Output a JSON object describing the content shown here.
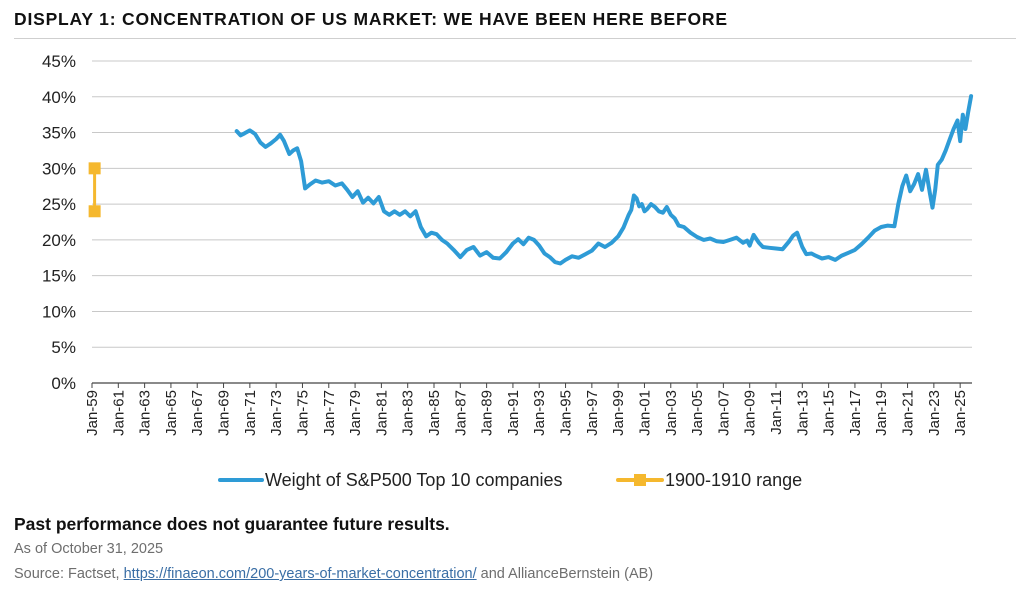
{
  "title": "DISPLAY 1: CONCENTRATION OF US MARKET: WE HAVE BEEN HERE BEFORE",
  "colors": {
    "series1": "#2e9bd6",
    "series2": "#f5b82e",
    "grid": "#c8c8c8",
    "axis": "#444444"
  },
  "footer": {
    "disclaimer": "Past performance does not guarantee future results.",
    "as_of": "As of October 31, 2025",
    "source_prefix": "Source: Factset, ",
    "source_link": "https://finaeon.com/200-years-of-market-concentration/",
    "source_suffix": " and AllianceBernstein (AB)"
  },
  "chart_data": {
    "type": "line",
    "title": "DISPLAY 1: CONCENTRATION OF US MARKET: WE HAVE BEEN HERE BEFORE",
    "xlabel": "",
    "ylabel": "",
    "x_range": [
      1959.0,
      2025.9
    ],
    "ylim": [
      0,
      45
    ],
    "y_ticks": [
      "0%",
      "5%",
      "10%",
      "15%",
      "20%",
      "25%",
      "30%",
      "35%",
      "40%",
      "45%"
    ],
    "y_tick_values": [
      0,
      5,
      10,
      15,
      20,
      25,
      30,
      35,
      40,
      45
    ],
    "x_ticks": [
      "Jan-59",
      "Jan-61",
      "Jan-63",
      "Jan-65",
      "Jan-67",
      "Jan-69",
      "Jan-71",
      "Jan-73",
      "Jan-75",
      "Jan-77",
      "Jan-79",
      "Jan-81",
      "Jan-83",
      "Jan-85",
      "Jan-87",
      "Jan-89",
      "Jan-91",
      "Jan-93",
      "Jan-95",
      "Jan-97",
      "Jan-99",
      "Jan-01",
      "Jan-03",
      "Jan-05",
      "Jan-07",
      "Jan-09",
      "Jan-11",
      "Jan-13",
      "Jan-15",
      "Jan-17",
      "Jan-19",
      "Jan-21",
      "Jan-23",
      "Jan-25"
    ],
    "x_tick_values": [
      1959,
      1961,
      1963,
      1965,
      1967,
      1969,
      1971,
      1973,
      1975,
      1977,
      1979,
      1981,
      1983,
      1985,
      1987,
      1989,
      1991,
      1993,
      1995,
      1997,
      1999,
      2001,
      2003,
      2005,
      2007,
      2009,
      2011,
      2013,
      2015,
      2017,
      2019,
      2021,
      2023,
      2025
    ],
    "grid": true,
    "legend_position": "bottom",
    "series": [
      {
        "name": "Weight of S&P500 Top 10 companies",
        "style": "line",
        "x": [
          1970.0,
          1970.3,
          1970.6,
          1971.0,
          1971.4,
          1971.8,
          1972.2,
          1972.6,
          1973.0,
          1973.3,
          1973.6,
          1974.0,
          1974.3,
          1974.6,
          1974.9,
          1975.2,
          1975.6,
          1976.0,
          1976.5,
          1977.0,
          1977.5,
          1978.0,
          1978.4,
          1978.8,
          1979.2,
          1979.6,
          1980.0,
          1980.4,
          1980.8,
          1981.2,
          1981.6,
          1982.0,
          1982.4,
          1982.8,
          1983.2,
          1983.6,
          1984.0,
          1984.4,
          1984.8,
          1985.2,
          1985.6,
          1986.0,
          1986.5,
          1987.0,
          1987.5,
          1988.0,
          1988.5,
          1989.0,
          1989.5,
          1990.0,
          1990.5,
          1991.0,
          1991.4,
          1991.8,
          1992.2,
          1992.6,
          1993.0,
          1993.4,
          1993.8,
          1994.2,
          1994.6,
          1995.0,
          1995.5,
          1996.0,
          1996.5,
          1997.0,
          1997.5,
          1998.0,
          1998.5,
          1999.0,
          1999.4,
          1999.8,
          2000.0,
          2000.2,
          2000.4,
          2000.6,
          2000.8,
          2001.0,
          2001.2,
          2001.5,
          2001.8,
          2002.1,
          2002.4,
          2002.7,
          2003.0,
          2003.3,
          2003.6,
          2004.0,
          2004.5,
          2005.0,
          2005.5,
          2006.0,
          2006.5,
          2007.0,
          2007.5,
          2008.0,
          2008.5,
          2008.8,
          2009.0,
          2009.3,
          2009.7,
          2010.0,
          2010.5,
          2011.0,
          2011.5,
          2012.0,
          2012.3,
          2012.6,
          2013.0,
          2013.3,
          2013.7,
          2014.0,
          2014.5,
          2015.0,
          2015.5,
          2016.0,
          2016.5,
          2017.0,
          2017.5,
          2018.0,
          2018.5,
          2019.0,
          2019.5,
          2020.0,
          2020.3,
          2020.6,
          2020.9,
          2021.2,
          2021.5,
          2021.8,
          2022.1,
          2022.4,
          2022.7,
          2022.9,
          2023.1,
          2023.3,
          2023.6,
          2023.9,
          2024.2,
          2024.5,
          2024.8,
          2025.0,
          2025.2,
          2025.4,
          2025.6,
          2025.83
        ],
        "values": [
          35.2,
          34.6,
          34.9,
          35.3,
          34.8,
          33.6,
          33.0,
          33.5,
          34.1,
          34.7,
          33.8,
          32.0,
          32.5,
          32.8,
          31.0,
          27.2,
          27.8,
          28.3,
          28.0,
          28.2,
          27.6,
          27.9,
          27.0,
          26.0,
          26.8,
          25.2,
          25.9,
          25.1,
          26.0,
          24.0,
          23.5,
          24.0,
          23.5,
          24.0,
          23.3,
          24.0,
          21.8,
          20.5,
          21.0,
          20.8,
          20.0,
          19.5,
          18.6,
          17.6,
          18.6,
          19.0,
          17.8,
          18.3,
          17.5,
          17.4,
          18.3,
          19.5,
          20.1,
          19.4,
          20.3,
          20.0,
          19.2,
          18.1,
          17.6,
          16.9,
          16.7,
          17.2,
          17.7,
          17.5,
          18.0,
          18.5,
          19.5,
          19.0,
          19.6,
          20.5,
          21.7,
          23.5,
          24.2,
          26.2,
          25.8,
          24.7,
          25.0,
          24.0,
          24.3,
          25.0,
          24.6,
          24.0,
          23.8,
          24.6,
          23.5,
          23.0,
          22.0,
          21.8,
          21.0,
          20.4,
          20.0,
          20.2,
          19.8,
          19.7,
          20.0,
          20.3,
          19.6,
          19.9,
          19.2,
          20.7,
          19.6,
          19.0,
          18.9,
          18.8,
          18.7,
          19.8,
          20.6,
          21.0,
          19.0,
          18.0,
          18.1,
          17.8,
          17.4,
          17.6,
          17.2,
          17.8,
          18.2,
          18.6,
          19.4,
          20.3,
          21.3,
          21.8,
          22.0,
          21.9,
          25.0,
          27.5,
          29.0,
          26.8,
          27.8,
          29.2,
          27.0,
          29.8,
          26.5,
          24.5,
          27.0,
          30.5,
          31.2,
          32.5,
          34.0,
          35.5,
          36.7,
          33.8,
          37.5,
          35.5,
          37.8,
          40.1
        ]
      },
      {
        "name": "1900-1910 range",
        "style": "line-square-markers",
        "x": [
          1959.2,
          1959.2
        ],
        "values": [
          24,
          30
        ]
      }
    ]
  }
}
